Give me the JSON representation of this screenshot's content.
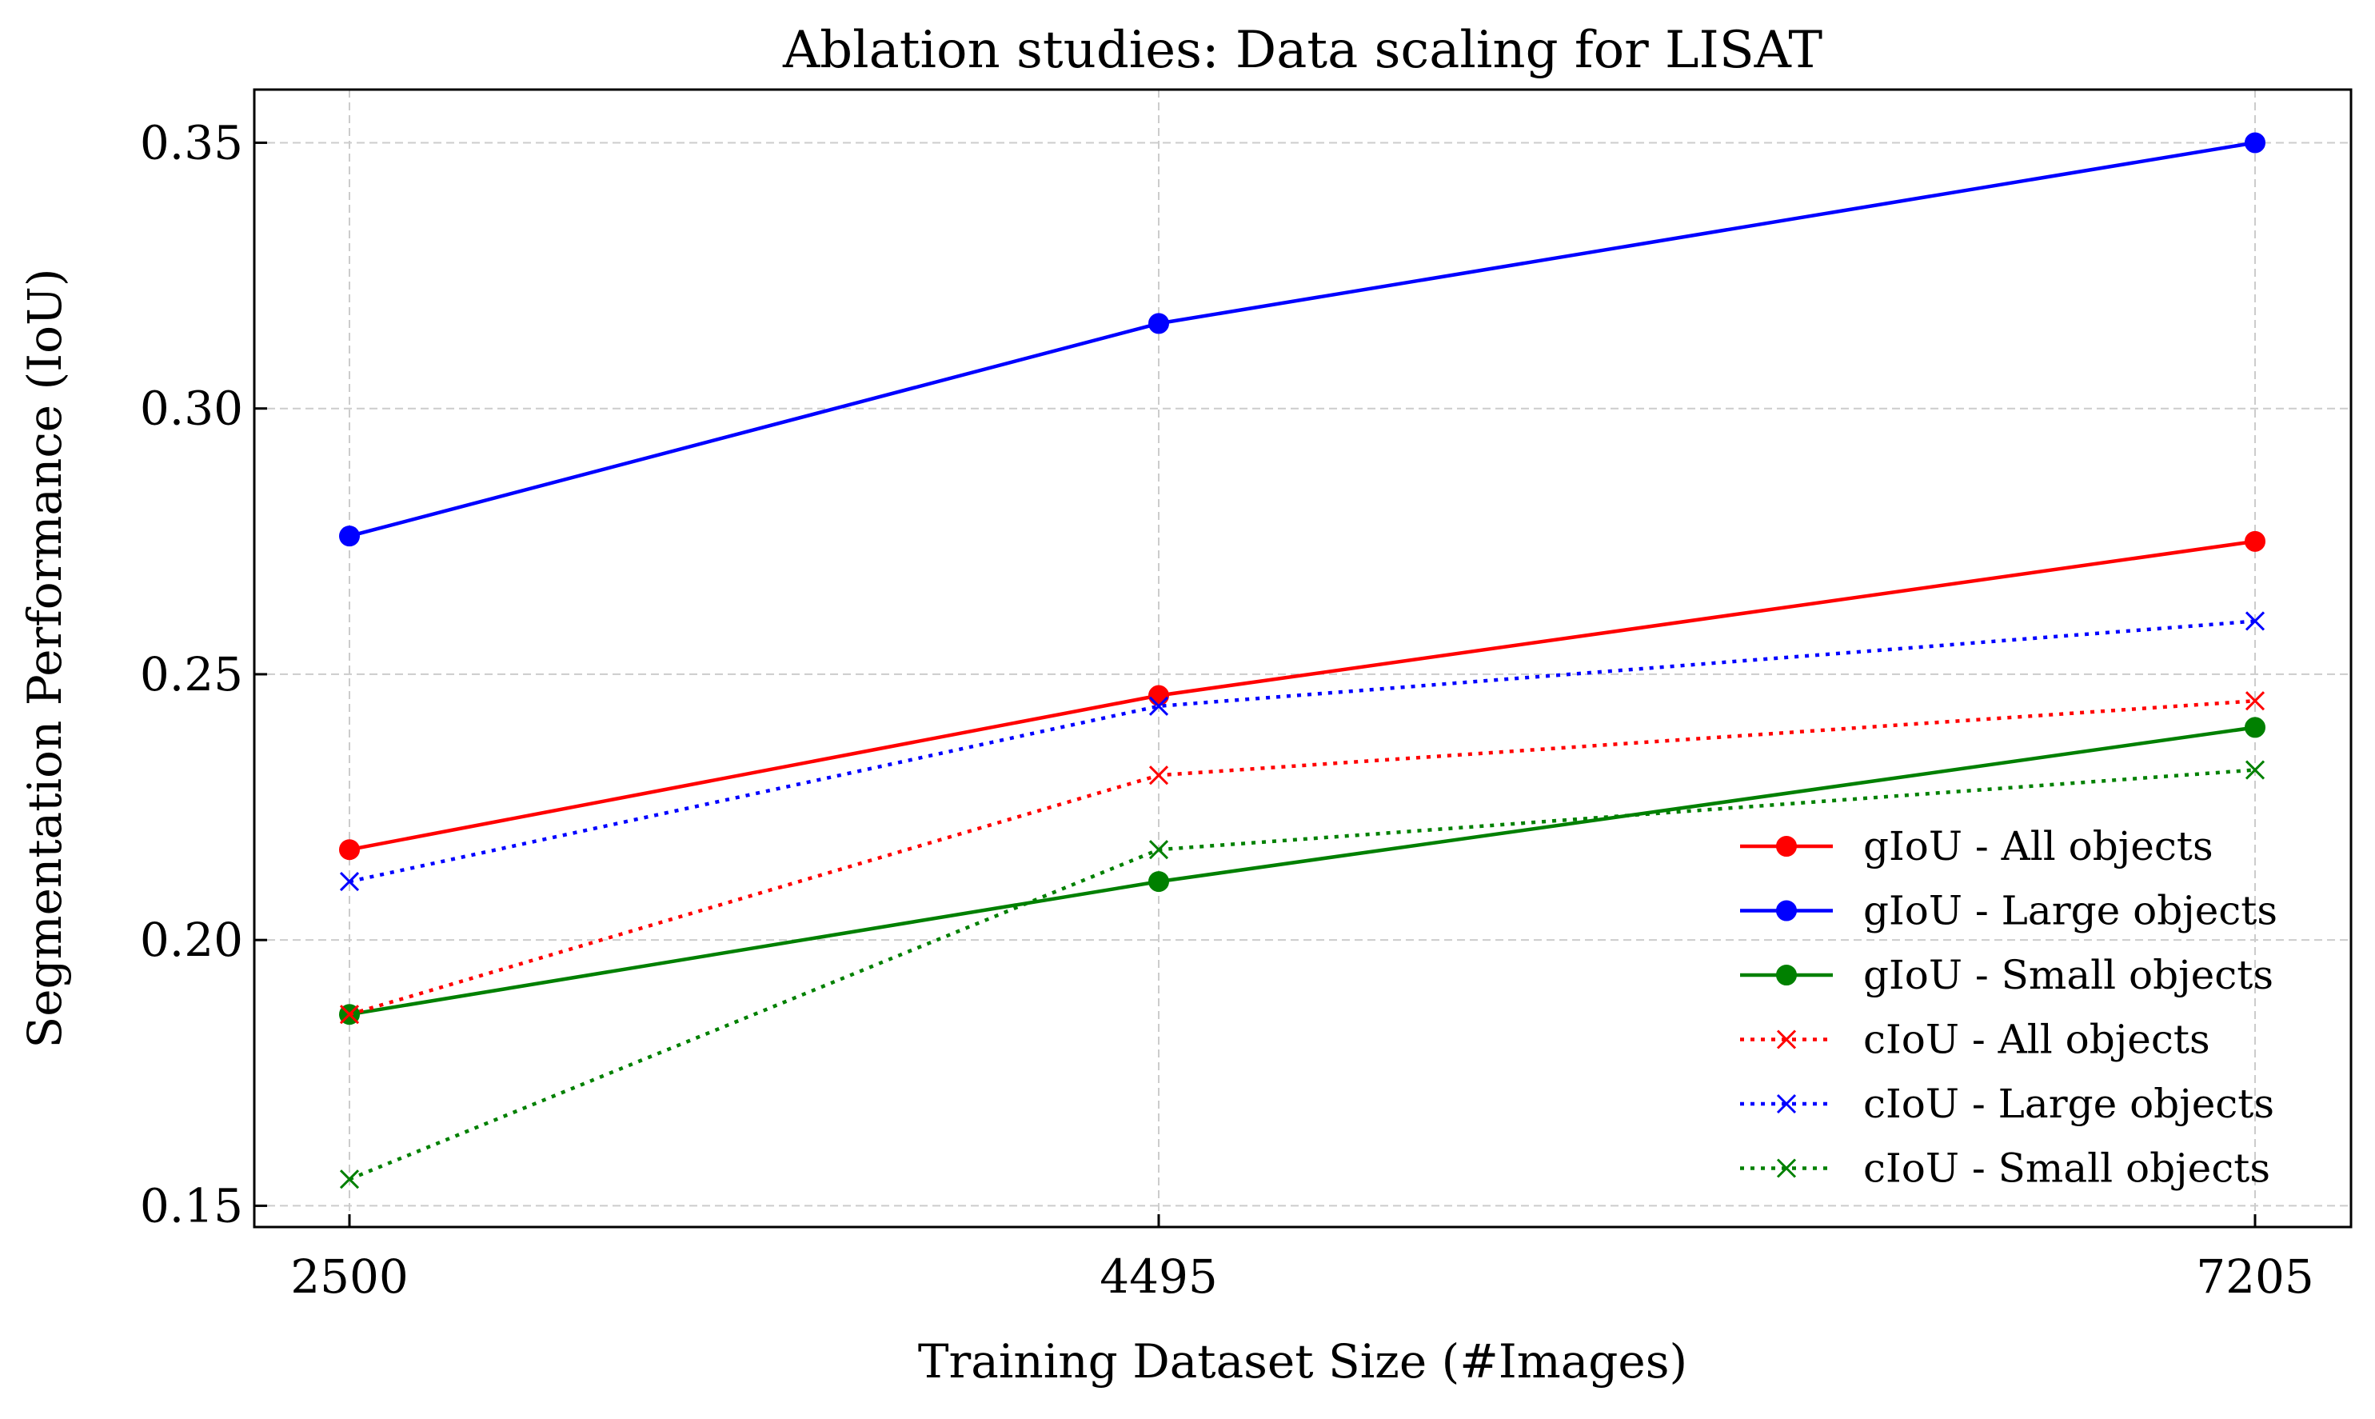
{
  "chart_data": {
    "type": "line",
    "title": "Ablation studies: Data scaling for LISAT",
    "xlabel": "Training Dataset Size (#Images)",
    "ylabel": "Segmentation Performance (IoU)",
    "categories": [
      "2500",
      "4495",
      "7205"
    ],
    "y_ticks": [
      "0.15",
      "0.20",
      "0.25",
      "0.30",
      "0.35"
    ],
    "y_tick_values": [
      0.15,
      0.2,
      0.25,
      0.3,
      0.35
    ],
    "ylim": [
      0.146,
      0.36
    ],
    "grid": true,
    "legend_position": "lower-right",
    "series": [
      {
        "name": "gIoU - All objects",
        "color": "#ff0000",
        "line_style": "solid",
        "marker": "circle",
        "values": [
          0.217,
          0.246,
          0.275
        ]
      },
      {
        "name": "gIoU - Large objects",
        "color": "#0000ff",
        "line_style": "solid",
        "marker": "circle",
        "values": [
          0.276,
          0.316,
          0.35
        ]
      },
      {
        "name": "gIoU - Small objects",
        "color": "#008000",
        "line_style": "solid",
        "marker": "circle",
        "values": [
          0.186,
          0.211,
          0.24
        ]
      },
      {
        "name": "cIoU - All objects",
        "color": "#ff0000",
        "line_style": "dotted",
        "marker": "x",
        "values": [
          0.186,
          0.231,
          0.245
        ]
      },
      {
        "name": "cIoU - Large objects",
        "color": "#0000ff",
        "line_style": "dotted",
        "marker": "x",
        "values": [
          0.211,
          0.244,
          0.26
        ]
      },
      {
        "name": "cIoU - Small objects",
        "color": "#008000",
        "line_style": "dotted",
        "marker": "x",
        "values": [
          0.155,
          0.217,
          0.232
        ]
      }
    ]
  }
}
